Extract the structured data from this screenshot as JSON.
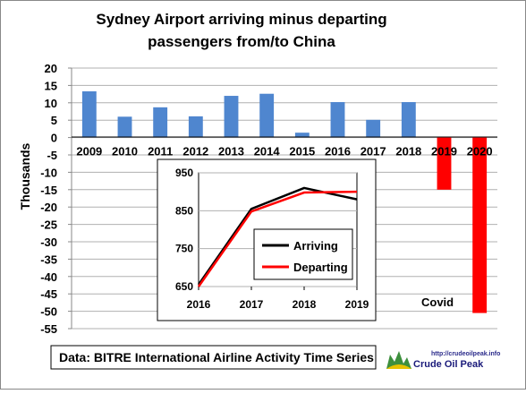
{
  "chart_data": [
    {
      "type": "bar",
      "title_lines": [
        "Sydney Airport arriving minus departing",
        "passengers from/to China"
      ],
      "ylabel": "Thousands",
      "xlabel": "",
      "categories": [
        "2009",
        "2010",
        "2011",
        "2012",
        "2013",
        "2014",
        "2015",
        "2016",
        "2017",
        "2018",
        "2019",
        "2020"
      ],
      "values": [
        13.3,
        6.0,
        8.7,
        6.1,
        12.0,
        12.6,
        1.4,
        10.2,
        5.1,
        10.2,
        -15.0,
        -50.5
      ],
      "bar_colors": [
        "#4f86cf",
        "#4f86cf",
        "#4f86cf",
        "#4f86cf",
        "#4f86cf",
        "#4f86cf",
        "#4f86cf",
        "#4f86cf",
        "#4f86cf",
        "#4f86cf",
        "#ff0000",
        "#ff0000"
      ],
      "ylim": [
        -55,
        20
      ],
      "yticks": [
        20,
        15,
        10,
        5,
        0,
        -5,
        -10,
        -15,
        -20,
        -25,
        -30,
        -35,
        -40,
        -45,
        -50,
        -55
      ],
      "annotation": "Covid",
      "grid": "horizontal"
    },
    {
      "type": "line",
      "x": [
        "2016",
        "2017",
        "2018",
        "2019"
      ],
      "ylim": [
        650,
        950
      ],
      "yticks": [
        950,
        850,
        750,
        650
      ],
      "series": [
        {
          "name": "Arriving",
          "color": "#000000",
          "values": [
            655,
            855,
            910,
            880
          ]
        },
        {
          "name": "Departing",
          "color": "#ff0000",
          "values": [
            650,
            848,
            898,
            900
          ]
        }
      ],
      "legend": "center-right"
    }
  ],
  "source_text": "Data: BITRE International Airline Activity Time Series",
  "logo": {
    "url": "http://crudeoilpeak.info",
    "name": "Crude Oil Peak"
  }
}
